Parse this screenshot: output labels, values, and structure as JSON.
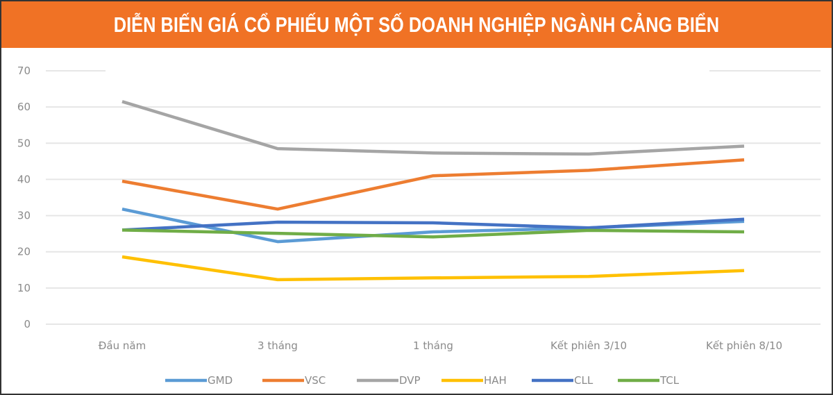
{
  "header": {
    "title": "DIỄN BIẾN GIÁ CỔ PHIẾU MỘT SỐ DOANH NGHIỆP NGÀNH CẢNG BIỂN"
  },
  "chart_data": {
    "type": "line",
    "title": "DIỄN BIẾN GIÁ CỔ PHIẾU MỘT SỐ DOANH NGHIỆP NGÀNH CẢNG BIỂN",
    "xlabel": "",
    "ylabel": "",
    "ylim": [
      0,
      70
    ],
    "yticks": [
      0,
      10,
      20,
      30,
      40,
      50,
      60,
      70
    ],
    "grid": true,
    "legend_position": "bottom",
    "categories": [
      "Đầu năm",
      "3 tháng",
      "1 tháng",
      "Kết phiên 3/10",
      "Kết phiên 8/10"
    ],
    "series": [
      {
        "name": "GMD",
        "color": "#5b9bd5",
        "values": [
          31.8,
          22.8,
          25.5,
          26.6,
          28.4
        ]
      },
      {
        "name": "VSC",
        "color": "#ed7d31",
        "values": [
          39.5,
          31.8,
          41.0,
          42.5,
          45.4
        ]
      },
      {
        "name": "DVP",
        "color": "#a5a5a5",
        "values": [
          61.5,
          48.5,
          47.3,
          47.0,
          49.2
        ]
      },
      {
        "name": "HAH",
        "color": "#ffc000",
        "values": [
          18.6,
          12.3,
          12.8,
          13.2,
          14.8
        ]
      },
      {
        "name": "CLL",
        "color": "#4472c4",
        "values": [
          26.0,
          28.2,
          28.0,
          26.6,
          29.0
        ]
      },
      {
        "name": "TCL",
        "color": "#70ad47",
        "values": [
          26.0,
          25.1,
          24.1,
          25.9,
          25.5
        ]
      }
    ]
  }
}
